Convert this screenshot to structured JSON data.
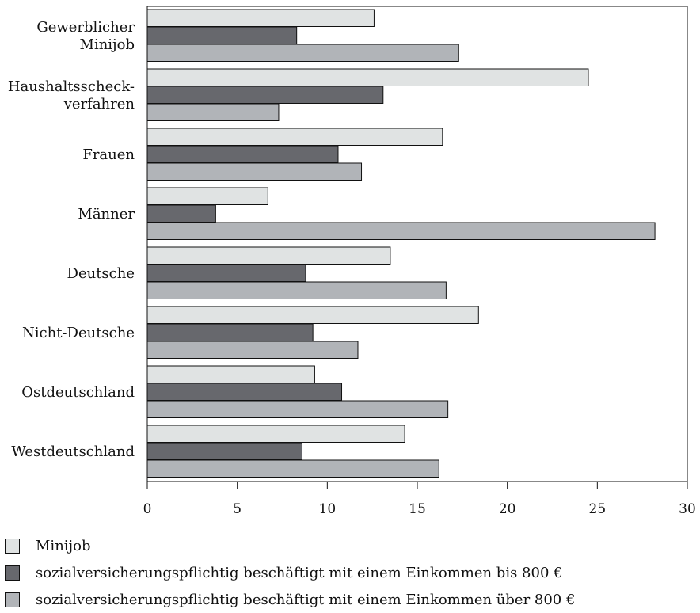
{
  "chart_data": {
    "type": "bar",
    "orientation": "horizontal",
    "categories": [
      [
        "Gewerblicher",
        "Minijob"
      ],
      [
        "Haushaltsscheck-",
        "verfahren"
      ],
      [
        "Frauen"
      ],
      [
        "Männer"
      ],
      [
        "Deutsche"
      ],
      [
        "Nicht-Deutsche"
      ],
      [
        "Ostdeutschland"
      ],
      [
        "Westdeutschland"
      ]
    ],
    "series": [
      {
        "name": "Minijob",
        "color": "#e0e3e3",
        "values": [
          12.6,
          24.5,
          16.4,
          6.7,
          13.5,
          18.4,
          9.3,
          14.3
        ]
      },
      {
        "name": "sozialversicherungspflichtig beschäftigt mit einem Einkommen bis 800 €",
        "color": "#67686d",
        "values": [
          8.3,
          13.1,
          10.6,
          3.8,
          8.8,
          9.2,
          10.8,
          8.6
        ]
      },
      {
        "name": "sozialversicherungspflichtig beschäftigt mit einem Einkommen über 800 €",
        "color": "#b1b4b8",
        "values": [
          17.3,
          7.3,
          11.9,
          28.2,
          16.6,
          11.7,
          16.7,
          16.2
        ]
      }
    ],
    "xlim": [
      0,
      30
    ],
    "xticks": [
      0,
      5,
      10,
      15,
      20,
      25,
      30
    ],
    "grid": false,
    "legend_position": "bottom-left"
  }
}
